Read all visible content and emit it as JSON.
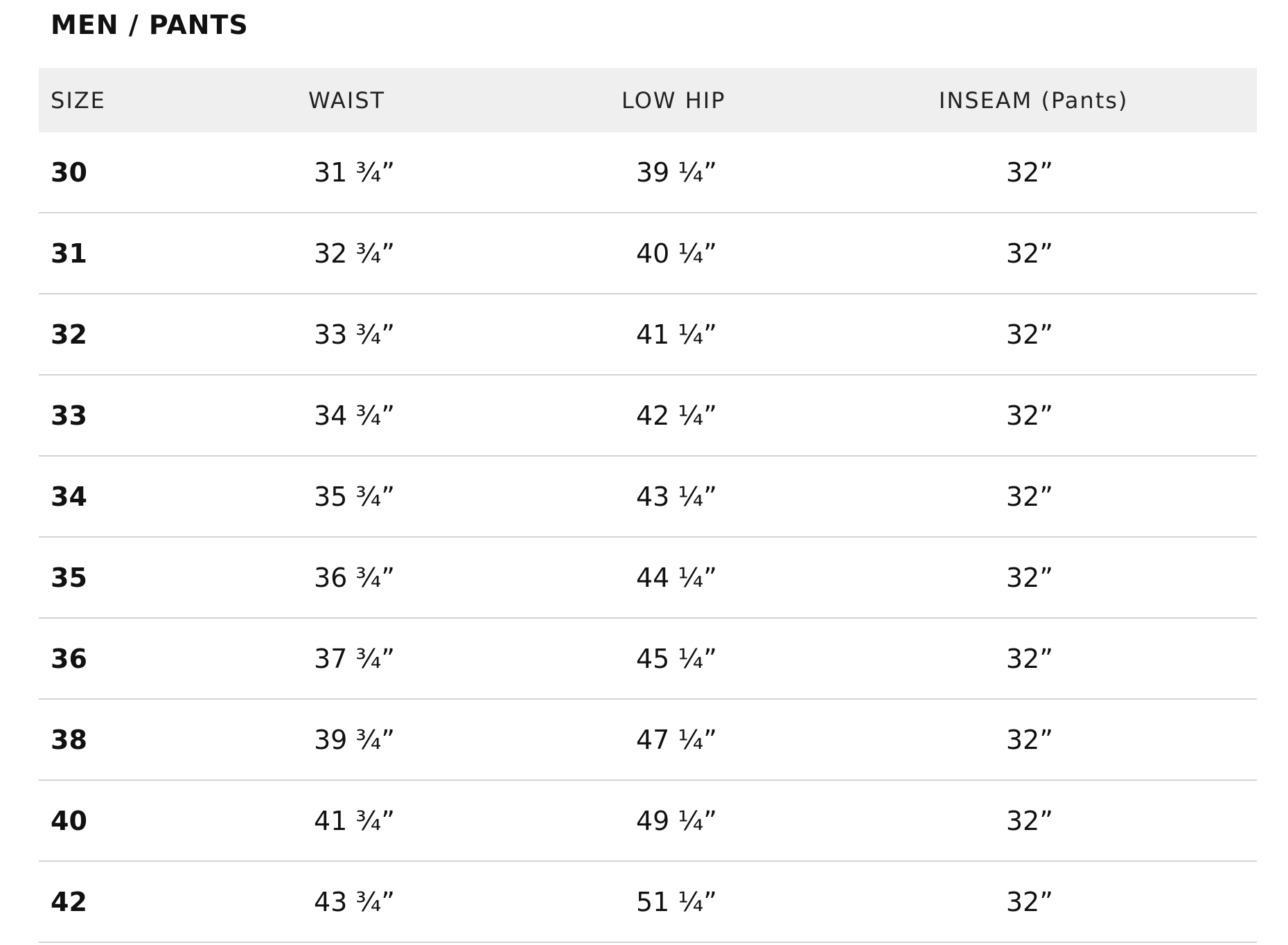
{
  "title": "MEN /  PANTS",
  "headers": [
    "SIZE",
    "WAIST",
    "LOW HIP",
    "INSEAM (Pants)"
  ],
  "rows": [
    [
      "30",
      "31 ¾”",
      "39 ¼”",
      "32”"
    ],
    [
      "31",
      "32 ¾”",
      "40 ¼”",
      "32”"
    ],
    [
      "32",
      "33 ¾”",
      "41 ¼”",
      "32”"
    ],
    [
      "33",
      "34 ¾”",
      "42 ¼”",
      "32”"
    ],
    [
      "34",
      "35 ¾”",
      "43 ¼”",
      "32”"
    ],
    [
      "35",
      "36 ¾”",
      "44 ¼”",
      "32”"
    ],
    [
      "36",
      "37 ¾”",
      "45 ¼”",
      "32”"
    ],
    [
      "38",
      "39 ¾”",
      "47 ¼”",
      "32”"
    ],
    [
      "40",
      "41 ¾”",
      "49 ¼”",
      "32”"
    ],
    [
      "42",
      "43 ¾”",
      "51 ¼”",
      "32”"
    ]
  ]
}
